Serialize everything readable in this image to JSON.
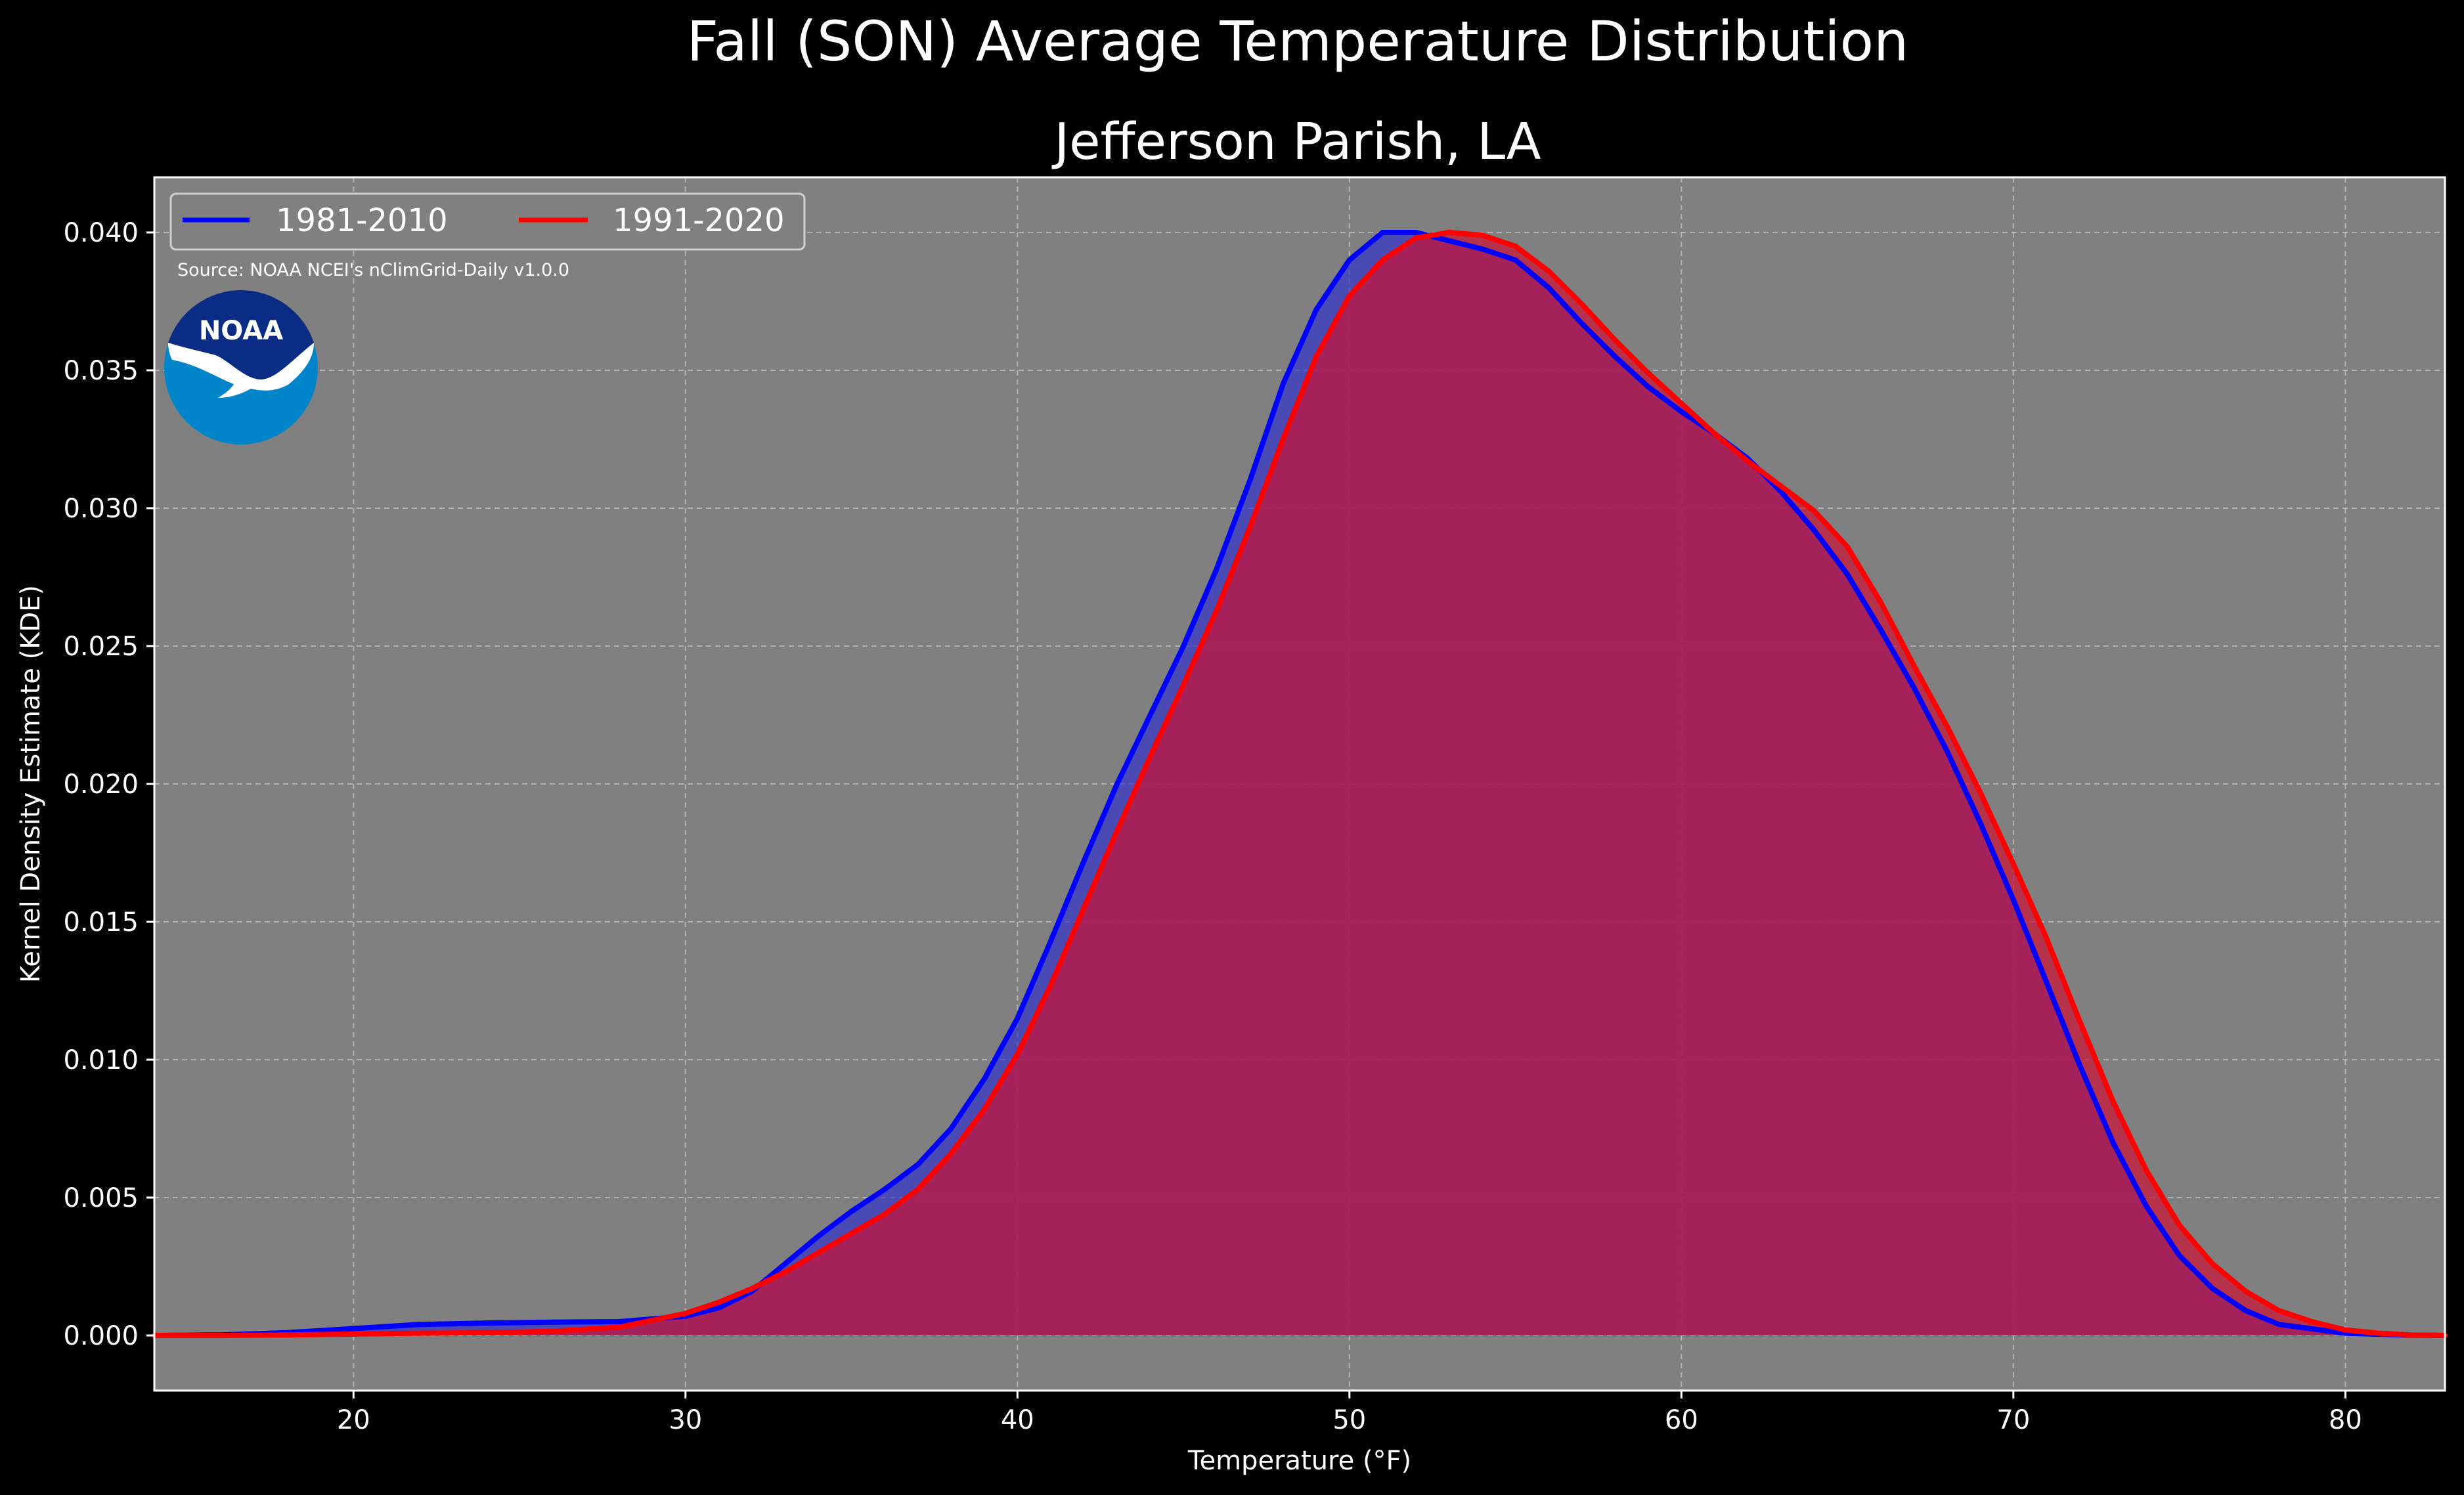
{
  "chart_data": {
    "type": "area",
    "suptitle": "Fall (SON) Average Temperature Distribution",
    "title": "Jefferson Parish, LA",
    "xlabel": "Temperature (°F)",
    "ylabel": "Kernel Density Estimate (KDE)",
    "source": "Source: NOAA NCEI's nClimGrid-Daily v1.0.0",
    "logo_text": "NOAA",
    "xlim": [
      14,
      83
    ],
    "ylim": [
      -0.002,
      0.042
    ],
    "xticks": [
      {
        "value": 20,
        "label": "20"
      },
      {
        "value": 30,
        "label": "30"
      },
      {
        "value": 40,
        "label": "40"
      },
      {
        "value": 50,
        "label": "50"
      },
      {
        "value": 60,
        "label": "60"
      },
      {
        "value": 70,
        "label": "70"
      },
      {
        "value": 80,
        "label": "80"
      }
    ],
    "yticks": [
      {
        "value": 0.0,
        "label": "0.000"
      },
      {
        "value": 0.005,
        "label": "0.005"
      },
      {
        "value": 0.01,
        "label": "0.010"
      },
      {
        "value": 0.015,
        "label": "0.015"
      },
      {
        "value": 0.02,
        "label": "0.020"
      },
      {
        "value": 0.025,
        "label": "0.025"
      },
      {
        "value": 0.03,
        "label": "0.030"
      },
      {
        "value": 0.035,
        "label": "0.035"
      },
      {
        "value": 0.04,
        "label": "0.040"
      }
    ],
    "grid": true,
    "legend_position": "top-left",
    "background_color": "#808080",
    "series": [
      {
        "name": "1981-2010",
        "line_color": "#0000ff",
        "fill_color": "#3333cc",
        "points": [
          [
            14,
            0
          ],
          [
            16,
            2e-05
          ],
          [
            18,
            0.0001
          ],
          [
            20,
            0.00025
          ],
          [
            22,
            0.0004
          ],
          [
            24,
            0.00045
          ],
          [
            26,
            0.00048
          ],
          [
            28,
            0.0005
          ],
          [
            30,
            0.0007
          ],
          [
            31,
            0.001
          ],
          [
            32,
            0.0016
          ],
          [
            33,
            0.0026
          ],
          [
            34,
            0.0036
          ],
          [
            35,
            0.0045
          ],
          [
            36,
            0.0053
          ],
          [
            37,
            0.0062
          ],
          [
            38,
            0.0075
          ],
          [
            39,
            0.0093
          ],
          [
            40,
            0.0115
          ],
          [
            41,
            0.0143
          ],
          [
            42,
            0.0172
          ],
          [
            43,
            0.02
          ],
          [
            44,
            0.0225
          ],
          [
            45,
            0.025
          ],
          [
            46,
            0.0278
          ],
          [
            47,
            0.031
          ],
          [
            48,
            0.0345
          ],
          [
            49,
            0.0372
          ],
          [
            50,
            0.039
          ],
          [
            51,
            0.04
          ],
          [
            52,
            0.04
          ],
          [
            53,
            0.0397
          ],
          [
            54,
            0.0394
          ],
          [
            55,
            0.039
          ],
          [
            56,
            0.038
          ],
          [
            57,
            0.0367
          ],
          [
            58,
            0.0355
          ],
          [
            59,
            0.0344
          ],
          [
            60,
            0.0335
          ],
          [
            61,
            0.0327
          ],
          [
            62,
            0.0318
          ],
          [
            63,
            0.0306
          ],
          [
            64,
            0.0292
          ],
          [
            65,
            0.0276
          ],
          [
            66,
            0.0256
          ],
          [
            67,
            0.0235
          ],
          [
            68,
            0.0212
          ],
          [
            69,
            0.0186
          ],
          [
            70,
            0.0158
          ],
          [
            71,
            0.0128
          ],
          [
            72,
            0.0098
          ],
          [
            73,
            0.007
          ],
          [
            74,
            0.0047
          ],
          [
            75,
            0.0029
          ],
          [
            76,
            0.0017
          ],
          [
            77,
            0.0009
          ],
          [
            78,
            0.0004
          ],
          [
            80,
            8e-05
          ],
          [
            82,
            1e-05
          ],
          [
            83,
            0
          ]
        ]
      },
      {
        "name": "1991-2020",
        "line_color": "#ff0000",
        "fill_color": "#cc1133",
        "points": [
          [
            14,
            0
          ],
          [
            16,
            0
          ],
          [
            18,
            2e-05
          ],
          [
            20,
            5e-05
          ],
          [
            22,
            8e-05
          ],
          [
            24,
            0.0001
          ],
          [
            26,
            0.00015
          ],
          [
            28,
            0.0003
          ],
          [
            30,
            0.0008
          ],
          [
            31,
            0.0012
          ],
          [
            32,
            0.0017
          ],
          [
            33,
            0.0023
          ],
          [
            34,
            0.003
          ],
          [
            35,
            0.0037
          ],
          [
            36,
            0.0044
          ],
          [
            37,
            0.0053
          ],
          [
            38,
            0.0066
          ],
          [
            39,
            0.0082
          ],
          [
            40,
            0.0102
          ],
          [
            41,
            0.0127
          ],
          [
            42,
            0.0155
          ],
          [
            43,
            0.0183
          ],
          [
            44,
            0.021
          ],
          [
            45,
            0.0236
          ],
          [
            46,
            0.0263
          ],
          [
            47,
            0.0293
          ],
          [
            48,
            0.0325
          ],
          [
            49,
            0.0355
          ],
          [
            50,
            0.0377
          ],
          [
            51,
            0.039
          ],
          [
            52,
            0.0398
          ],
          [
            53,
            0.04
          ],
          [
            54,
            0.0399
          ],
          [
            55,
            0.0395
          ],
          [
            56,
            0.0386
          ],
          [
            57,
            0.0374
          ],
          [
            58,
            0.0361
          ],
          [
            59,
            0.0349
          ],
          [
            60,
            0.0338
          ],
          [
            61,
            0.0327
          ],
          [
            62,
            0.0317
          ],
          [
            63,
            0.0308
          ],
          [
            64,
            0.0299
          ],
          [
            65,
            0.0286
          ],
          [
            66,
            0.0266
          ],
          [
            67,
            0.0243
          ],
          [
            68,
            0.0221
          ],
          [
            69,
            0.0197
          ],
          [
            70,
            0.0171
          ],
          [
            71,
            0.0144
          ],
          [
            72,
            0.0114
          ],
          [
            73,
            0.0085
          ],
          [
            74,
            0.006
          ],
          [
            75,
            0.004
          ],
          [
            76,
            0.0026
          ],
          [
            77,
            0.0016
          ],
          [
            78,
            0.0009
          ],
          [
            79,
            0.0005
          ],
          [
            80,
            0.0002
          ],
          [
            81,
            8e-05
          ],
          [
            82,
            2e-05
          ],
          [
            83,
            0
          ]
        ]
      }
    ]
  }
}
